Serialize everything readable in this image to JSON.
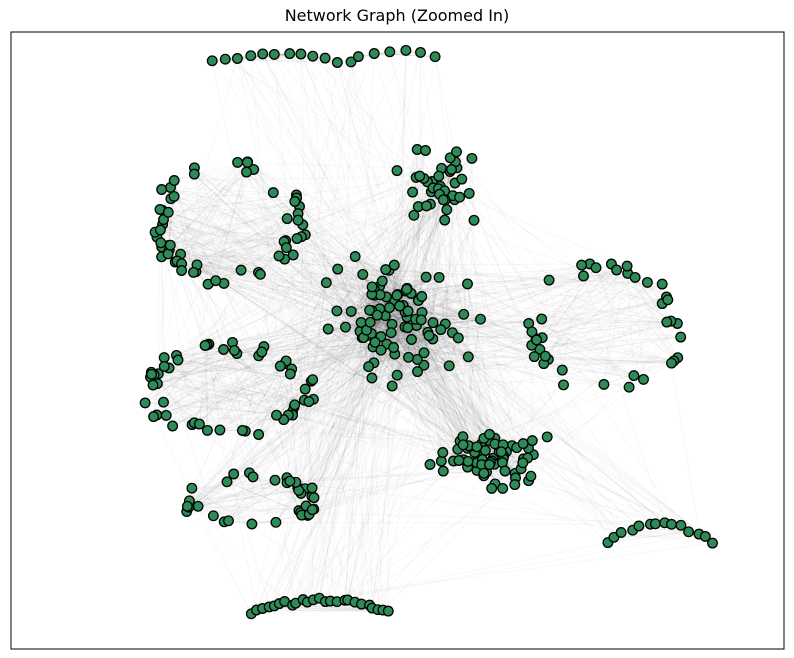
{
  "figure": {
    "title": "Network Graph (Zoomed In)"
  },
  "colors": {
    "node_fill": "#2e8b57",
    "node_stroke": "#000000",
    "edge": "#000000",
    "background": "#ffffff",
    "frame": "#000000"
  },
  "chart_data": {
    "type": "network",
    "title": "Network Graph (Zoomed In)",
    "axes_visible": false,
    "grid": false,
    "legend": "none",
    "edge_opacity": 0.03,
    "clusters": [
      {
        "name": "top-left-arc",
        "cx": 0.35,
        "cy": 0.95,
        "rx": 0.09,
        "ry": 0.03,
        "n": 12,
        "shape": "arc"
      },
      {
        "name": "top-right-arc",
        "cx": 0.5,
        "cy": 0.96,
        "rx": 0.05,
        "ry": 0.015,
        "n": 6,
        "shape": "arc"
      },
      {
        "name": "center-top",
        "cx": 0.55,
        "cy": 0.75,
        "rx": 0.08,
        "ry": 0.08,
        "n": 40,
        "shape": "blob"
      },
      {
        "name": "core",
        "cx": 0.5,
        "cy": 0.54,
        "rx": 0.12,
        "ry": 0.12,
        "n": 90,
        "shape": "blob"
      },
      {
        "name": "left-upper-ring",
        "cx": 0.28,
        "cy": 0.69,
        "rx": 0.09,
        "ry": 0.09,
        "n": 60,
        "shape": "ring"
      },
      {
        "name": "left-lower-ring",
        "cx": 0.28,
        "cy": 0.42,
        "rx": 0.1,
        "ry": 0.07,
        "n": 55,
        "shape": "ring"
      },
      {
        "name": "bottom-left-band",
        "cx": 0.31,
        "cy": 0.24,
        "rx": 0.08,
        "ry": 0.04,
        "n": 35,
        "shape": "ring"
      },
      {
        "name": "bottom-center-arc",
        "cx": 0.4,
        "cy": 0.06,
        "rx": 0.09,
        "ry": 0.04,
        "n": 25,
        "shape": "arc"
      },
      {
        "name": "lower-right-cluster",
        "cx": 0.62,
        "cy": 0.31,
        "rx": 0.09,
        "ry": 0.07,
        "n": 70,
        "shape": "blob"
      },
      {
        "name": "right-ring",
        "cx": 0.77,
        "cy": 0.52,
        "rx": 0.09,
        "ry": 0.1,
        "n": 40,
        "shape": "ring"
      },
      {
        "name": "far-right-arc",
        "cx": 0.84,
        "cy": 0.17,
        "rx": 0.07,
        "ry": 0.07,
        "n": 14,
        "shape": "arc"
      }
    ]
  }
}
